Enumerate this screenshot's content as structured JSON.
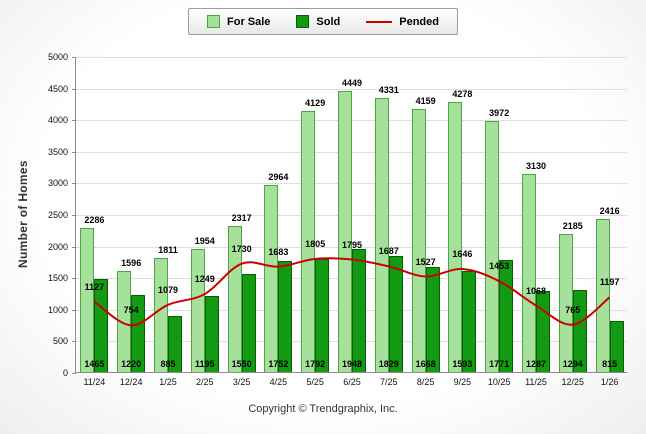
{
  "legend": {
    "for_sale": "For Sale",
    "sold": "Sold",
    "pended": "Pended"
  },
  "ylabel": "Number of Homes",
  "footer": "Copyright © Trendgraphix, Inc.",
  "colors": {
    "for_sale_fill": "#a6e19b",
    "for_sale_border": "#4ea344",
    "sold_fill": "#129b12",
    "sold_border": "#085f08",
    "pended_line": "#cc0000"
  },
  "chart_data": {
    "type": "bar",
    "title": "",
    "xlabel": "",
    "ylabel": "Number of Homes",
    "categories": [
      "11/24",
      "12/24",
      "1/25",
      "2/25",
      "3/25",
      "4/25",
      "5/25",
      "6/25",
      "7/25",
      "8/25",
      "9/25",
      "10/25",
      "11/25",
      "12/25",
      "1/26"
    ],
    "series": [
      {
        "name": "For Sale",
        "type": "bar",
        "values": [
          2286,
          1596,
          1811,
          1954,
          2317,
          2964,
          4129,
          4449,
          4331,
          4159,
          4278,
          3972,
          3130,
          2185,
          2416
        ]
      },
      {
        "name": "Sold",
        "type": "bar",
        "values": [
          1465,
          1220,
          885,
          1195,
          1550,
          1752,
          1792,
          1948,
          1829,
          1668,
          1593,
          1771,
          1287,
          1294,
          815
        ]
      },
      {
        "name": "Pended",
        "type": "line",
        "values": [
          1127,
          754,
          1079,
          1249,
          1730,
          1683,
          1805,
          1795,
          1687,
          1527,
          1646,
          1453,
          1068,
          765,
          1197
        ]
      }
    ],
    "ylim": [
      0,
      5000
    ],
    "ytick_step": 500,
    "grid": true,
    "legend_position": "top"
  }
}
